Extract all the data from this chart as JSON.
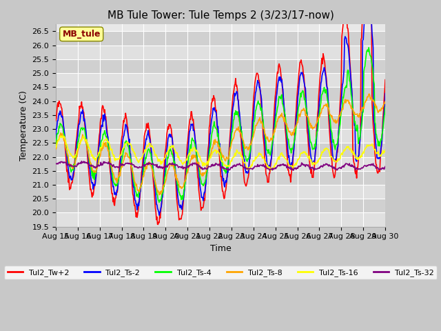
{
  "title": "MB Tule Tower: Tule Temps 2 (3/23/17-now)",
  "xlabel": "Time",
  "ylabel": "Temperature (C)",
  "ylim": [
    19.5,
    26.75
  ],
  "xlim": [
    0,
    15
  ],
  "x_tick_labels": [
    "Aug 15",
    "Aug 16",
    "Aug 17",
    "Aug 18",
    "Aug 19",
    "Aug 20",
    "Aug 21",
    "Aug 22",
    "Aug 23",
    "Aug 24",
    "Aug 25",
    "Aug 26",
    "Aug 27",
    "Aug 28",
    "Aug 29",
    "Aug 30"
  ],
  "legend_labels": [
    "Tul2_Tw+2",
    "Tul2_Ts-2",
    "Tul2_Ts-4",
    "Tul2_Ts-8",
    "Tul2_Ts-16",
    "Tul2_Ts-32"
  ],
  "colors": [
    "red",
    "blue",
    "lime",
    "orange",
    "yellow",
    "purple"
  ],
  "annotation_text": "MB_tule",
  "annotation_color": "#8B0000",
  "annotation_bg": "#FFFF99",
  "title_fontsize": 11,
  "axis_fontsize": 9,
  "tick_fontsize": 8,
  "legend_fontsize": 8,
  "figwidth": 6.4,
  "figheight": 4.8,
  "dpi": 100
}
